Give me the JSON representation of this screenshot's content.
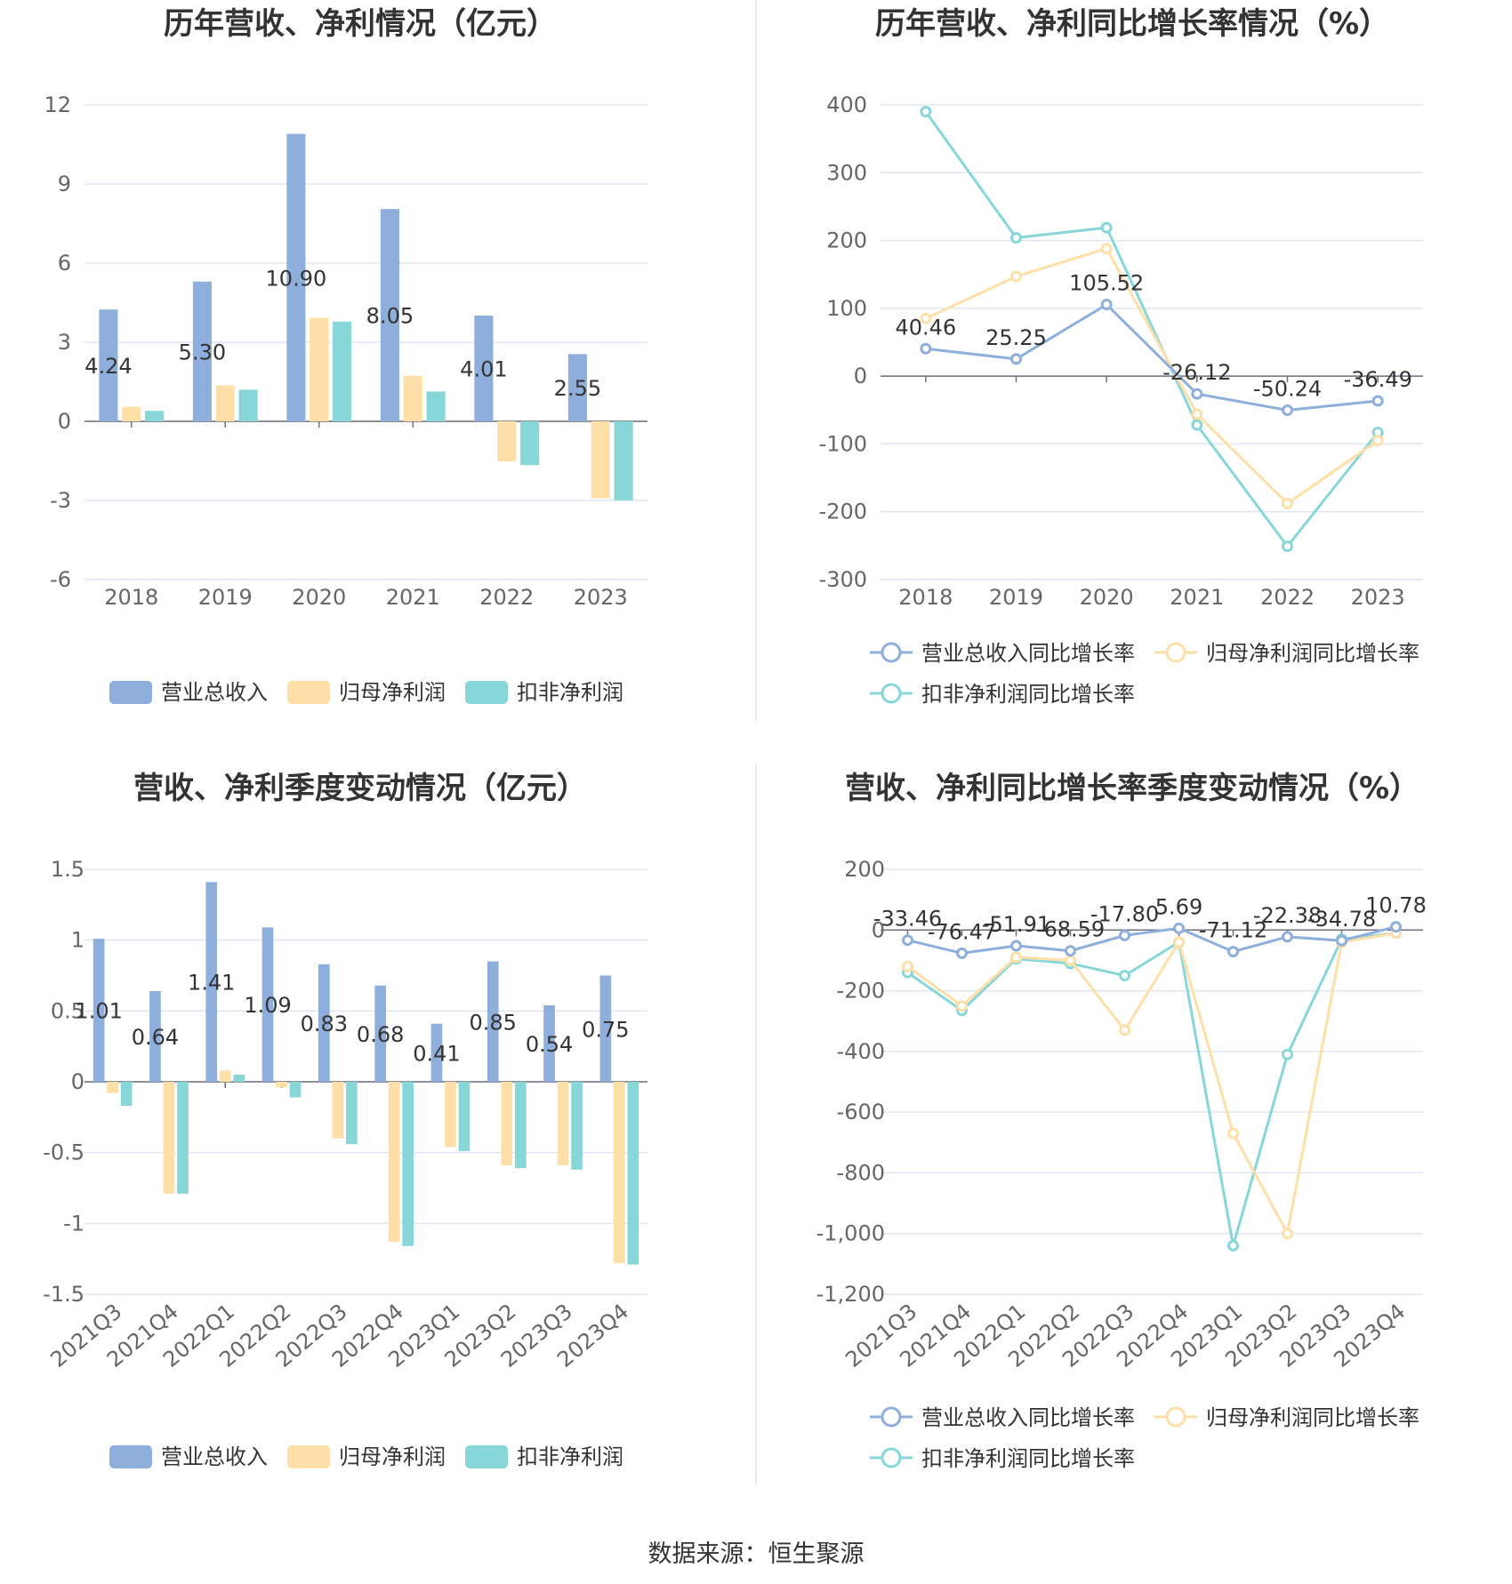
{
  "colors": {
    "revenue": "#8eaedb",
    "net_profit": "#ffdfa8",
    "deducted_profit": "#87d6d8",
    "grid": "#e0e6f1",
    "axis": "#6e7079",
    "text": "#333333",
    "divider": "#e8e8e8"
  },
  "legend_labels": {
    "bar": [
      "营业总收入",
      "归母净利润",
      "扣非净利润"
    ],
    "line": [
      "营业总收入同比增长率",
      "归母净利润同比增长率",
      "扣非净利润同比增长率"
    ]
  },
  "footer": "数据来源：恒生聚源",
  "chart_data": [
    {
      "type": "bar",
      "title": "历年营收、净利情况（亿元）",
      "categories": [
        "2018",
        "2019",
        "2020",
        "2021",
        "2022",
        "2023"
      ],
      "ylim": [
        -6,
        12
      ],
      "yticks": [
        12,
        9,
        6,
        3,
        0,
        -3,
        -6
      ],
      "series": [
        {
          "name": "营业总收入",
          "values": [
            4.24,
            5.3,
            10.9,
            8.05,
            4.01,
            2.55
          ],
          "labels": [
            "4.24",
            "5.30",
            "10.90",
            "8.05",
            "4.01",
            "2.55"
          ]
        },
        {
          "name": "归母净利润",
          "values": [
            0.55,
            1.36,
            3.92,
            1.72,
            -1.52,
            -2.92
          ]
        },
        {
          "name": "扣非净利润",
          "values": [
            0.4,
            1.2,
            3.78,
            1.13,
            -1.66,
            -3.0
          ]
        }
      ],
      "grid": true,
      "legend": "bottom"
    },
    {
      "type": "line",
      "title": "历年营收、净利同比增长率情况（%）",
      "categories": [
        "2018",
        "2019",
        "2020",
        "2021",
        "2022",
        "2023"
      ],
      "ylim": [
        -300,
        400
      ],
      "yticks": [
        400,
        300,
        200,
        100,
        0,
        -100,
        -200,
        -300
      ],
      "series": [
        {
          "name": "营业总收入同比增长率",
          "values": [
            40.46,
            25.25,
            105.52,
            -26.12,
            -50.24,
            -36.49
          ],
          "labels": [
            "40.46",
            "25.25",
            "105.52",
            "-26.12",
            "-50.24",
            "-36.49"
          ]
        },
        {
          "name": "归母净利润同比增长率",
          "values": [
            85,
            147,
            188,
            -56,
            -188,
            -95
          ]
        },
        {
          "name": "扣非净利润同比增长率",
          "values": [
            390,
            204,
            219,
            -72,
            -251,
            -83
          ]
        }
      ],
      "grid": true,
      "legend": "bottom"
    },
    {
      "type": "bar",
      "title": "营收、净利季度变动情况（亿元）",
      "categories": [
        "2021Q3",
        "2021Q4",
        "2022Q1",
        "2022Q2",
        "2022Q3",
        "2022Q4",
        "2023Q1",
        "2023Q2",
        "2023Q3",
        "2023Q4"
      ],
      "ylim": [
        -1.5,
        1.5
      ],
      "yticks": [
        "1.5",
        "1",
        "0.5",
        "0",
        "-0.5",
        "-1",
        "-1.5"
      ],
      "series": [
        {
          "name": "营业总收入",
          "values": [
            1.01,
            0.64,
            1.41,
            1.09,
            0.83,
            0.68,
            0.41,
            0.85,
            0.54,
            0.75
          ],
          "labels": [
            "1.01",
            "0.64",
            "1.41",
            "1.09",
            "0.83",
            "0.68",
            "0.41",
            "0.85",
            "0.54",
            "0.75"
          ]
        },
        {
          "name": "归母净利润",
          "values": [
            -0.08,
            -0.79,
            0.08,
            -0.04,
            -0.4,
            -1.13,
            -0.46,
            -0.59,
            -0.59,
            -1.28
          ]
        },
        {
          "name": "扣非净利润",
          "values": [
            -0.17,
            -0.79,
            0.05,
            -0.11,
            -0.44,
            -1.16,
            -0.49,
            -0.61,
            -0.62,
            -1.29
          ]
        }
      ],
      "grid": true,
      "legend": "bottom"
    },
    {
      "type": "line",
      "title": "营收、净利同比增长率季度变动情况（%）",
      "categories": [
        "2021Q3",
        "2021Q4",
        "2022Q1",
        "2022Q2",
        "2022Q3",
        "2022Q4",
        "2023Q1",
        "2023Q2",
        "2023Q3",
        "2023Q4"
      ],
      "ylim": [
        -1200,
        200
      ],
      "yticks": [
        "200",
        "0",
        "-200",
        "-400",
        "-600",
        "-800",
        "-1,000",
        "-1,200"
      ],
      "series": [
        {
          "name": "营业总收入同比增长率",
          "values": [
            -33.46,
            -76.47,
            -51.91,
            -68.59,
            -17.8,
            5.69,
            -71.12,
            -22.38,
            -34.78,
            10.78
          ],
          "labels": [
            "-33.46",
            "-76.47",
            "-51.91",
            "-68.59",
            "-17.80",
            "5.69",
            "-71.12",
            "-22.38",
            "-34.78",
            "10.78"
          ]
        },
        {
          "name": "归母净利润同比增长率",
          "values": [
            -120,
            -250,
            -90,
            -100,
            -330,
            -40,
            -670,
            -1000,
            -40,
            -10
          ]
        },
        {
          "name": "扣非净利润同比增长率",
          "values": [
            -140,
            -265,
            -95,
            -110,
            -150,
            -40,
            -1040,
            -410,
            -30,
            -10
          ]
        }
      ],
      "grid": true,
      "legend": "bottom"
    }
  ]
}
